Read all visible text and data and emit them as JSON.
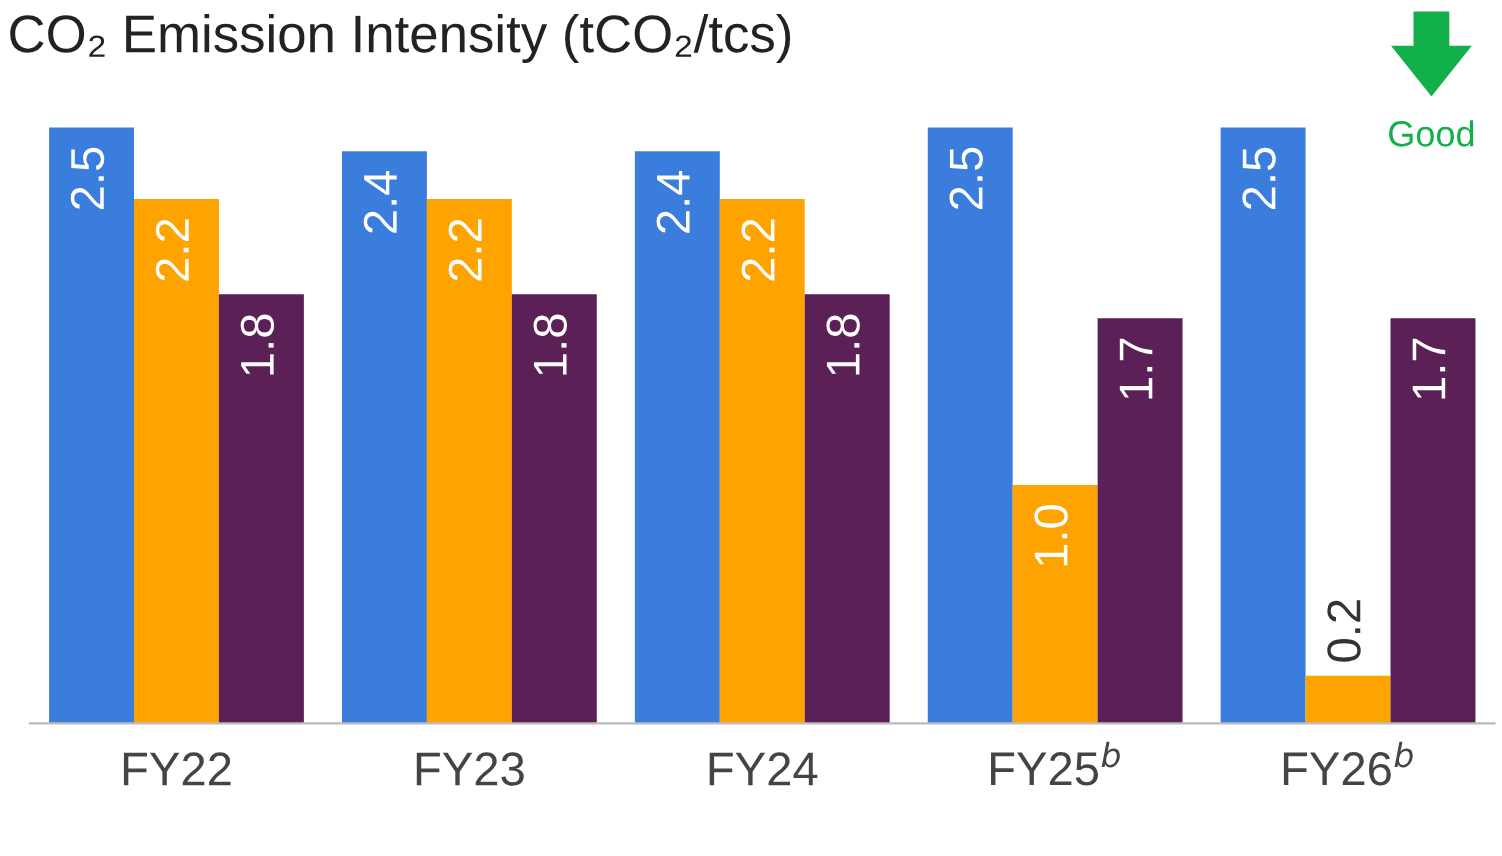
{
  "chart_data": {
    "type": "bar",
    "title": "CO₂ Emission Intensity (tCO₂/tcs)",
    "categories": [
      "FY22",
      "FY23",
      "FY24",
      "FY25$^{b}$",
      "FY26$^{b}$"
    ],
    "series": [
      {
        "color": "#3b7ddd",
        "values": [
          2.5,
          2.4,
          2.4,
          2.5,
          2.5
        ],
        "value_labels": [
          "2.5",
          "2.4",
          "2.4",
          "2.5",
          "2.5"
        ]
      },
      {
        "color": "#ffa300",
        "values": [
          2.2,
          2.2,
          2.2,
          1.0,
          0.2
        ],
        "value_labels": [
          "2.2",
          "2.2",
          "2.2",
          "1.0",
          "0.2"
        ]
      },
      {
        "color": "#5b2157",
        "values": [
          1.8,
          1.8,
          1.8,
          1.7,
          1.7
        ],
        "value_labels": [
          "1.8",
          "1.8",
          "1.8",
          "1.7",
          "1.7"
        ]
      }
    ],
    "grid": false,
    "legend": false,
    "annotations": [
      "Good"
    ]
  }
}
